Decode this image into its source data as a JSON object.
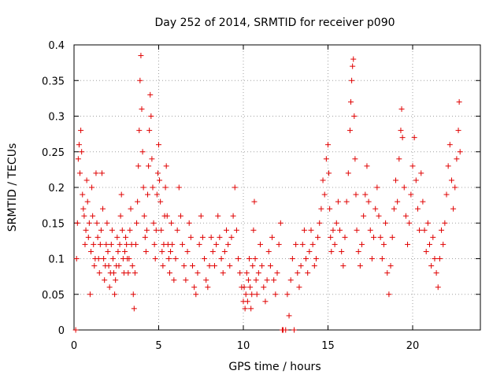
{
  "chart_data": {
    "type": "scatter",
    "title": "Day 252 of 2014, SRMTID for receiver p090",
    "xlabel": "GPS time / hours",
    "ylabel": "SRMTID / TECUs",
    "xlim": [
      0,
      24
    ],
    "ylim": [
      0,
      0.4
    ],
    "xticks": [
      0,
      5,
      10,
      15,
      20
    ],
    "yticks": [
      0,
      0.05,
      0.1,
      0.15,
      0.2,
      0.25,
      0.3,
      0.35,
      0.4
    ],
    "xtick_labels": [
      "0",
      "5",
      "10",
      "15",
      "20"
    ],
    "ytick_labels": [
      "0",
      "0.05",
      "0.1",
      "0.15",
      "0.2",
      "0.25",
      "0.3",
      "0.35",
      "0.4"
    ],
    "grid": true,
    "marker": "+",
    "color": "#e00000",
    "series": [
      {
        "name": "SRMTID",
        "points": [
          [
            0.1,
            0.0
          ],
          [
            0.15,
            0.1
          ],
          [
            0.2,
            0.15
          ],
          [
            0.25,
            0.24
          ],
          [
            0.3,
            0.26
          ],
          [
            0.35,
            0.22
          ],
          [
            0.4,
            0.28
          ],
          [
            0.45,
            0.25
          ],
          [
            0.5,
            0.19
          ],
          [
            0.55,
            0.17
          ],
          [
            0.6,
            0.16
          ],
          [
            0.65,
            0.12
          ],
          [
            0.7,
            0.14
          ],
          [
            0.75,
            0.21
          ],
          [
            0.8,
            0.18
          ],
          [
            0.85,
            0.13
          ],
          [
            0.9,
            0.15
          ],
          [
            0.95,
            0.05
          ],
          [
            1.0,
            0.11
          ],
          [
            1.05,
            0.2
          ],
          [
            1.1,
            0.16
          ],
          [
            1.15,
            0.12
          ],
          [
            1.2,
            0.09
          ],
          [
            1.25,
            0.1
          ],
          [
            1.3,
            0.22
          ],
          [
            1.35,
            0.15
          ],
          [
            1.4,
            0.13
          ],
          [
            1.45,
            0.1
          ],
          [
            1.5,
            0.08
          ],
          [
            1.55,
            0.12
          ],
          [
            1.6,
            0.14
          ],
          [
            1.65,
            0.22
          ],
          [
            1.7,
            0.17
          ],
          [
            1.75,
            0.1
          ],
          [
            1.8,
            0.07
          ],
          [
            1.85,
            0.09
          ],
          [
            1.9,
            0.12
          ],
          [
            1.95,
            0.15
          ],
          [
            2.0,
            0.11
          ],
          [
            2.05,
            0.09
          ],
          [
            2.1,
            0.06
          ],
          [
            2.15,
            0.08
          ],
          [
            2.2,
            0.12
          ],
          [
            2.25,
            0.14
          ],
          [
            2.3,
            0.1
          ],
          [
            2.35,
            0.08
          ],
          [
            2.4,
            0.05
          ],
          [
            2.45,
            0.07
          ],
          [
            2.5,
            0.09
          ],
          [
            2.55,
            0.13
          ],
          [
            2.6,
            0.11
          ],
          [
            2.65,
            0.09
          ],
          [
            2.7,
            0.12
          ],
          [
            2.75,
            0.16
          ],
          [
            2.8,
            0.19
          ],
          [
            2.85,
            0.14
          ],
          [
            2.9,
            0.1
          ],
          [
            2.95,
            0.08
          ],
          [
            3.0,
            0.11
          ],
          [
            3.05,
            0.13
          ],
          [
            3.1,
            0.12
          ],
          [
            3.15,
            0.1
          ],
          [
            3.2,
            0.08
          ],
          [
            3.25,
            0.1
          ],
          [
            3.3,
            0.14
          ],
          [
            3.35,
            0.17
          ],
          [
            3.4,
            0.12
          ],
          [
            3.45,
            0.09
          ],
          [
            3.5,
            0.05
          ],
          [
            3.55,
            0.03
          ],
          [
            3.6,
            0.08
          ],
          [
            3.65,
            0.12
          ],
          [
            3.7,
            0.15
          ],
          [
            3.75,
            0.18
          ],
          [
            3.8,
            0.23
          ],
          [
            3.85,
            0.28
          ],
          [
            3.9,
            0.35
          ],
          [
            3.95,
            0.385
          ],
          [
            4.0,
            0.31
          ],
          [
            4.05,
            0.25
          ],
          [
            4.1,
            0.2
          ],
          [
            4.15,
            0.16
          ],
          [
            4.2,
            0.13
          ],
          [
            4.25,
            0.11
          ],
          [
            4.3,
            0.14
          ],
          [
            4.35,
            0.19
          ],
          [
            4.4,
            0.23
          ],
          [
            4.45,
            0.28
          ],
          [
            4.5,
            0.33
          ],
          [
            4.55,
            0.3
          ],
          [
            4.6,
            0.24
          ],
          [
            4.65,
            0.2
          ],
          [
            4.7,
            0.15
          ],
          [
            4.75,
            0.12
          ],
          [
            4.8,
            0.1
          ],
          [
            4.85,
            0.14
          ],
          [
            4.9,
            0.19
          ],
          [
            4.95,
            0.22
          ],
          [
            5.0,
            0.26
          ],
          [
            5.05,
            0.21
          ],
          [
            5.1,
            0.18
          ],
          [
            5.15,
            0.14
          ],
          [
            5.2,
            0.11
          ],
          [
            5.25,
            0.09
          ],
          [
            5.3,
            0.12
          ],
          [
            5.35,
            0.16
          ],
          [
            5.4,
            0.2
          ],
          [
            5.45,
            0.23
          ],
          [
            5.5,
            0.16
          ],
          [
            5.55,
            0.12
          ],
          [
            5.6,
            0.1
          ],
          [
            5.65,
            0.08
          ],
          [
            5.7,
            0.11
          ],
          [
            5.75,
            0.15
          ],
          [
            5.8,
            0.12
          ],
          [
            5.9,
            0.07
          ],
          [
            6.0,
            0.1
          ],
          [
            6.1,
            0.14
          ],
          [
            6.2,
            0.2
          ],
          [
            6.3,
            0.16
          ],
          [
            6.4,
            0.12
          ],
          [
            6.5,
            0.09
          ],
          [
            6.6,
            0.07
          ],
          [
            6.7,
            0.11
          ],
          [
            6.8,
            0.15
          ],
          [
            6.9,
            0.13
          ],
          [
            7.0,
            0.09
          ],
          [
            7.1,
            0.06
          ],
          [
            7.2,
            0.05
          ],
          [
            7.3,
            0.08
          ],
          [
            7.4,
            0.12
          ],
          [
            7.5,
            0.16
          ],
          [
            7.6,
            0.13
          ],
          [
            7.7,
            0.1
          ],
          [
            7.8,
            0.07
          ],
          [
            7.9,
            0.06
          ],
          [
            8.0,
            0.09
          ],
          [
            8.1,
            0.13
          ],
          [
            8.2,
            0.11
          ],
          [
            8.3,
            0.09
          ],
          [
            8.4,
            0.12
          ],
          [
            8.5,
            0.16
          ],
          [
            8.6,
            0.13
          ],
          [
            8.7,
            0.1
          ],
          [
            8.8,
            0.08
          ],
          [
            8.9,
            0.11
          ],
          [
            9.0,
            0.14
          ],
          [
            9.1,
            0.12
          ],
          [
            9.2,
            0.09
          ],
          [
            9.3,
            0.13
          ],
          [
            9.4,
            0.16
          ],
          [
            9.5,
            0.2
          ],
          [
            9.6,
            0.14
          ],
          [
            9.7,
            0.1
          ],
          [
            9.8,
            0.08
          ],
          [
            9.9,
            0.06
          ],
          [
            10.0,
            0.04
          ],
          [
            10.05,
            0.06
          ],
          [
            10.1,
            0.03
          ],
          [
            10.15,
            0.05
          ],
          [
            10.2,
            0.08
          ],
          [
            10.25,
            0.04
          ],
          [
            10.3,
            0.07
          ],
          [
            10.35,
            0.1
          ],
          [
            10.4,
            0.06
          ],
          [
            10.45,
            0.03
          ],
          [
            10.5,
            0.05
          ],
          [
            10.55,
            0.09
          ],
          [
            10.6,
            0.14
          ],
          [
            10.65,
            0.18
          ],
          [
            10.7,
            0.1
          ],
          [
            10.75,
            0.07
          ],
          [
            10.8,
            0.05
          ],
          [
            10.9,
            0.08
          ],
          [
            11.0,
            0.12
          ],
          [
            11.1,
            0.09
          ],
          [
            11.2,
            0.06
          ],
          [
            11.3,
            0.04
          ],
          [
            11.4,
            0.07
          ],
          [
            11.5,
            0.11
          ],
          [
            11.6,
            0.09
          ],
          [
            11.7,
            0.13
          ],
          [
            11.8,
            0.07
          ],
          [
            11.9,
            0.05
          ],
          [
            12.0,
            0.08
          ],
          [
            12.1,
            0.12
          ],
          [
            12.2,
            0.15
          ],
          [
            12.3,
            0.0
          ],
          [
            12.35,
            0.0
          ],
          [
            12.5,
            0.0
          ],
          [
            12.6,
            0.05
          ],
          [
            12.7,
            0.02
          ],
          [
            12.8,
            0.07
          ],
          [
            12.9,
            0.1
          ],
          [
            13.0,
            0.0
          ],
          [
            13.1,
            0.12
          ],
          [
            13.2,
            0.08
          ],
          [
            13.3,
            0.06
          ],
          [
            13.4,
            0.09
          ],
          [
            13.5,
            0.12
          ],
          [
            13.6,
            0.14
          ],
          [
            13.7,
            0.1
          ],
          [
            13.8,
            0.08
          ],
          [
            13.9,
            0.11
          ],
          [
            14.0,
            0.14
          ],
          [
            14.1,
            0.12
          ],
          [
            14.2,
            0.09
          ],
          [
            14.3,
            0.1
          ],
          [
            14.4,
            0.13
          ],
          [
            14.5,
            0.15
          ],
          [
            14.6,
            0.17
          ],
          [
            14.7,
            0.21
          ],
          [
            14.8,
            0.19
          ],
          [
            14.9,
            0.24
          ],
          [
            15.0,
            0.26
          ],
          [
            15.05,
            0.22
          ],
          [
            15.1,
            0.17
          ],
          [
            15.15,
            0.13
          ],
          [
            15.2,
            0.11
          ],
          [
            15.3,
            0.14
          ],
          [
            15.4,
            0.12
          ],
          [
            15.5,
            0.15
          ],
          [
            15.6,
            0.18
          ],
          [
            15.7,
            0.14
          ],
          [
            15.8,
            0.11
          ],
          [
            15.9,
            0.09
          ],
          [
            16.0,
            0.13
          ],
          [
            16.1,
            0.18
          ],
          [
            16.2,
            0.22
          ],
          [
            16.3,
            0.28
          ],
          [
            16.35,
            0.32
          ],
          [
            16.4,
            0.35
          ],
          [
            16.45,
            0.37
          ],
          [
            16.5,
            0.38
          ],
          [
            16.55,
            0.3
          ],
          [
            16.6,
            0.24
          ],
          [
            16.65,
            0.19
          ],
          [
            16.7,
            0.14
          ],
          [
            16.8,
            0.11
          ],
          [
            16.9,
            0.09
          ],
          [
            17.0,
            0.12
          ],
          [
            17.1,
            0.16
          ],
          [
            17.2,
            0.19
          ],
          [
            17.3,
            0.23
          ],
          [
            17.4,
            0.18
          ],
          [
            17.5,
            0.14
          ],
          [
            17.6,
            0.1
          ],
          [
            17.7,
            0.13
          ],
          [
            17.8,
            0.17
          ],
          [
            17.9,
            0.2
          ],
          [
            18.0,
            0.16
          ],
          [
            18.1,
            0.13
          ],
          [
            18.2,
            0.1
          ],
          [
            18.3,
            0.12
          ],
          [
            18.4,
            0.15
          ],
          [
            18.5,
            0.08
          ],
          [
            18.6,
            0.05
          ],
          [
            18.7,
            0.09
          ],
          [
            18.8,
            0.13
          ],
          [
            18.9,
            0.17
          ],
          [
            19.0,
            0.21
          ],
          [
            19.1,
            0.18
          ],
          [
            19.2,
            0.24
          ],
          [
            19.3,
            0.28
          ],
          [
            19.35,
            0.31
          ],
          [
            19.4,
            0.27
          ],
          [
            19.5,
            0.2
          ],
          [
            19.6,
            0.16
          ],
          [
            19.7,
            0.12
          ],
          [
            19.8,
            0.15
          ],
          [
            19.9,
            0.19
          ],
          [
            20.0,
            0.23
          ],
          [
            20.1,
            0.27
          ],
          [
            20.2,
            0.21
          ],
          [
            20.3,
            0.17
          ],
          [
            20.4,
            0.14
          ],
          [
            20.5,
            0.22
          ],
          [
            20.6,
            0.18
          ],
          [
            20.7,
            0.14
          ],
          [
            20.8,
            0.11
          ],
          [
            20.9,
            0.15
          ],
          [
            21.0,
            0.12
          ],
          [
            21.1,
            0.09
          ],
          [
            21.2,
            0.13
          ],
          [
            21.3,
            0.1
          ],
          [
            21.4,
            0.08
          ],
          [
            21.5,
            0.06
          ],
          [
            21.6,
            0.1
          ],
          [
            21.7,
            0.14
          ],
          [
            21.8,
            0.12
          ],
          [
            21.9,
            0.15
          ],
          [
            22.0,
            0.19
          ],
          [
            22.1,
            0.23
          ],
          [
            22.2,
            0.26
          ],
          [
            22.3,
            0.21
          ],
          [
            22.4,
            0.17
          ],
          [
            22.5,
            0.2
          ],
          [
            22.6,
            0.24
          ],
          [
            22.7,
            0.28
          ],
          [
            22.75,
            0.32
          ],
          [
            22.8,
            0.25
          ]
        ]
      }
    ]
  }
}
